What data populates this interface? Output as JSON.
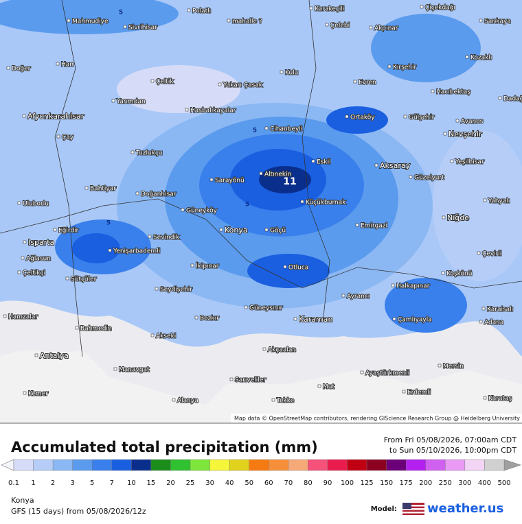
{
  "map": {
    "places": [
      "Polatlı",
      "Karakeçili",
      "Çiçekdağı",
      "Mahmudiye",
      "Sivrihisar",
      "mahalle ?",
      "Çelebi",
      "Akpınar",
      "Sarıkaya",
      "Doğer",
      "Han",
      "Kozaklı",
      "Kırşehir",
      "Kulu",
      "Çeltik",
      "Yukarı Çasak",
      "Evren",
      "Hacıbektaş",
      "Yarımdan",
      "Dadağı",
      "Hasbalıkayalar",
      "Afyonkarahisar",
      "Cihanbeyli",
      "Ortaköy",
      "Gülşehir",
      "Avanos",
      "Nevşehir",
      "Çay",
      "Tuzlukçu",
      "Eskil",
      "Aksaray",
      "Yeşilhisar",
      "Altınekin",
      "Sarayönü",
      "Güzelyurt",
      "Bahtiyar",
      "Doğanhisar",
      "Küçükburnak",
      "Yahyalı",
      "Uluborlu",
      "Güneyköy",
      "Emirgazi",
      "Niğde",
      "Eğirdir",
      "Konya",
      "Göçü",
      "Sevindik",
      "Isparta",
      "Yenişarbademli",
      "Çevirli",
      "Ağlasun",
      "İkipınar",
      "Otluca",
      "Çeltikçi",
      "Sütçüler",
      "Koşkönü",
      "Halkapınar",
      "Seydişehir",
      "Ayrancı",
      "Güneysınır",
      "Karaisalı",
      "Hamzalar",
      "Bozkır",
      "Karaman",
      "Çamlıyayla",
      "Adana",
      "Bahmedin",
      "Akseki",
      "Akçaalan",
      "Antalya",
      "Manavgat",
      "Mersin",
      "Ayaştürkmenli",
      "Sarıveliler",
      "Mut",
      "Kemer",
      "Erdemli",
      "Alanya",
      "Tekke",
      "Karataş"
    ],
    "contour_labels": [
      "5",
      "5",
      "5",
      "5",
      "11"
    ],
    "attribution": "Map data © OpenStreetMap contributors, rendering GIScience Research Group @ Heidelberg University"
  },
  "header": {
    "title": "Accumulated total precipitation (mm)",
    "from": "From Fri 05/08/2026, 07:00am CDT",
    "to": "to Sun 05/10/2026, 10:00pm CDT"
  },
  "legend": {
    "labels": [
      0.1,
      1,
      2,
      3,
      5,
      7,
      10,
      15,
      20,
      25,
      30,
      40,
      50,
      60,
      70,
      80,
      90,
      100,
      125,
      150,
      175,
      200,
      250,
      300,
      400,
      500
    ],
    "colors": [
      "#d6dcf7",
      "#b5cdf7",
      "#8bb8f3",
      "#5b9bee",
      "#3a80ec",
      "#1a5fe0",
      "#0a2e8c",
      "#1b8d1b",
      "#2fc12f",
      "#7ee63a",
      "#f5f53a",
      "#e0d21c",
      "#f57a11",
      "#f58f3a",
      "#f5a978",
      "#f5517a",
      "#ea1c4e",
      "#c00012",
      "#8c0020",
      "#6b0078",
      "#b320f0",
      "#d060f0",
      "#e89af5",
      "#f2d4f5",
      "#d0d0d0"
    ]
  },
  "footer": {
    "location": "Konya",
    "model_run": "GFS (15 days) from 05/08/2026/12z",
    "model_label": "Model:",
    "brand": "weather.us"
  }
}
